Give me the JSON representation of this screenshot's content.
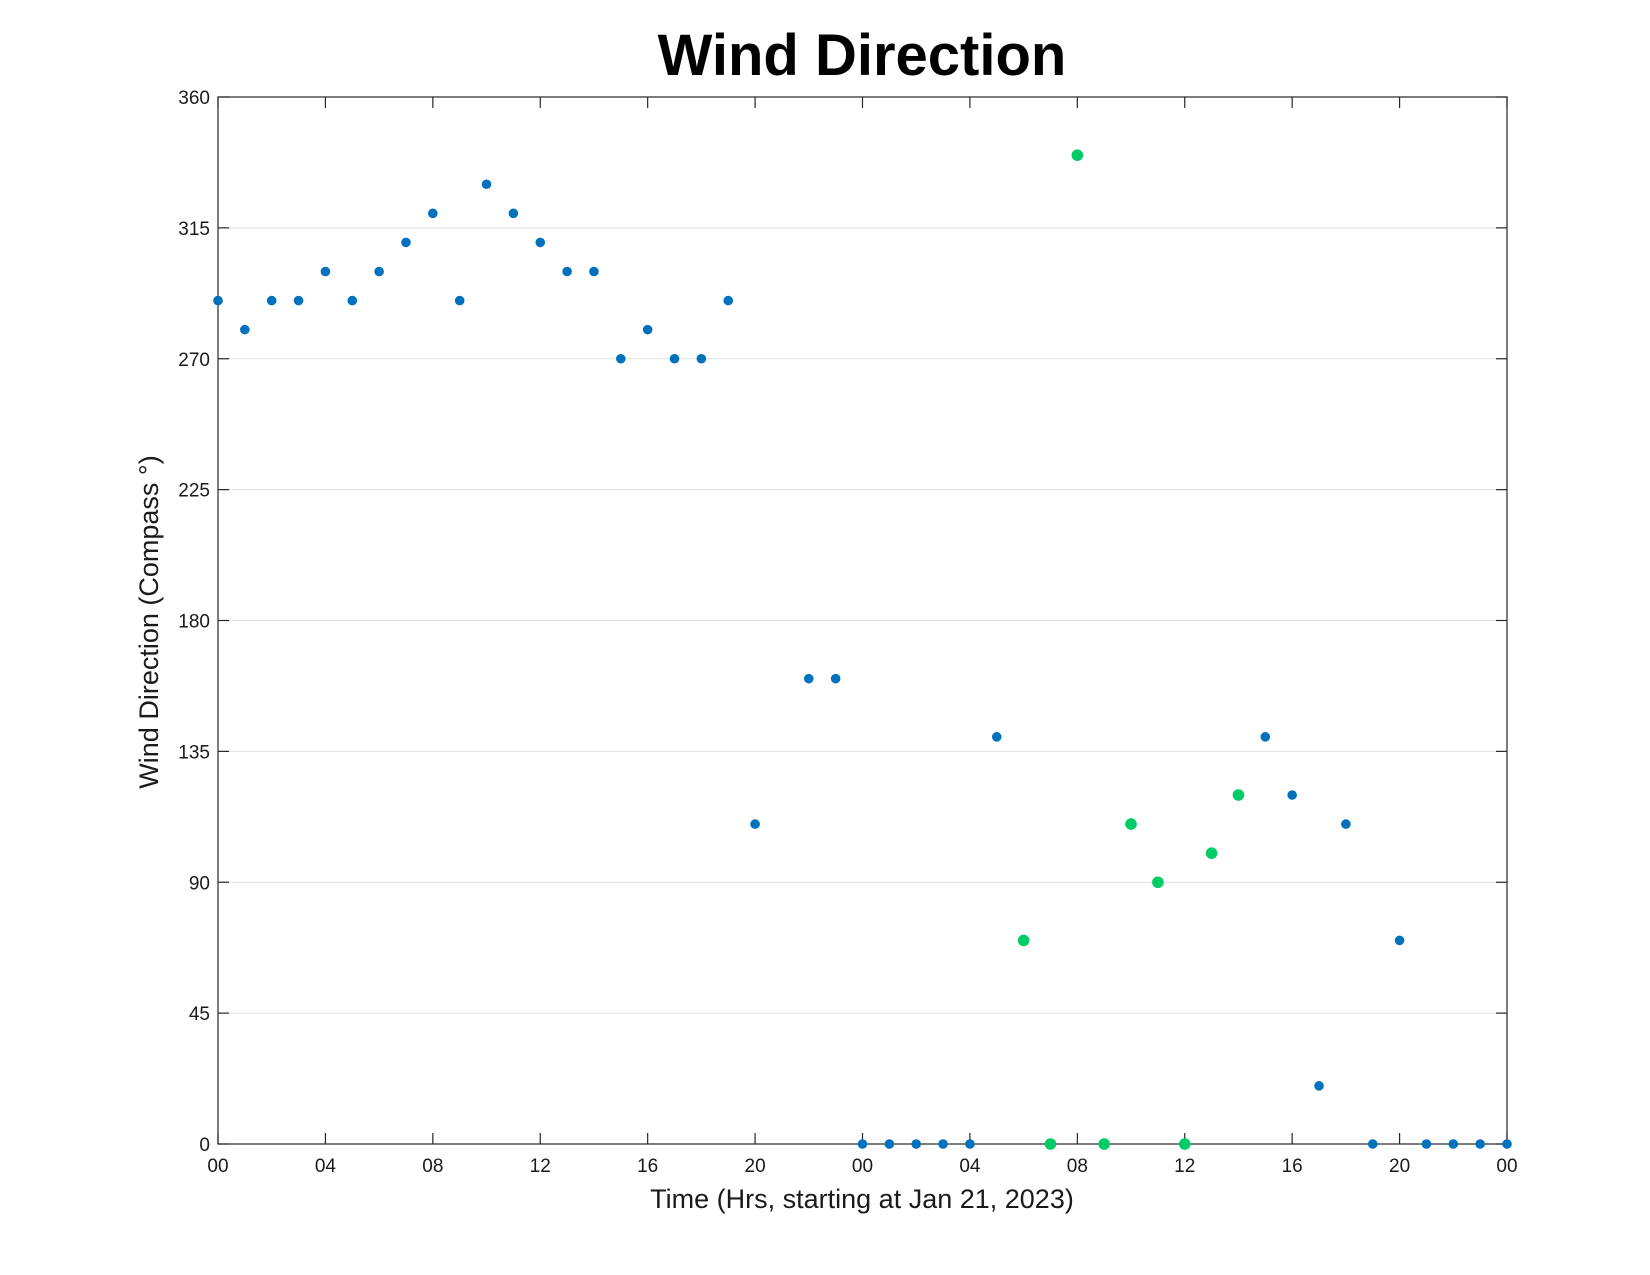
{
  "chart_data": {
    "type": "scatter",
    "title": "Wind Direction",
    "xlabel": "Time (Hrs, starting at Jan 21, 2023)",
    "ylabel": "Wind Direction (Compass °)",
    "xlim": [
      0,
      48
    ],
    "ylim": [
      0,
      360
    ],
    "x_tick_values": [
      0,
      4,
      8,
      12,
      16,
      20,
      24,
      28,
      32,
      36,
      40,
      44,
      48
    ],
    "x_tick_labels": [
      "00",
      "04",
      "08",
      "12",
      "16",
      "20",
      "00",
      "04",
      "08",
      "12",
      "16",
      "20",
      "00"
    ],
    "y_ticks": [
      0,
      45,
      90,
      135,
      180,
      225,
      270,
      315,
      360
    ],
    "grid": "horizontal",
    "legend": "none",
    "series": [
      {
        "color": "#0072BD",
        "points": [
          [
            0,
            290
          ],
          [
            1,
            280
          ],
          [
            2,
            290
          ],
          [
            3,
            290
          ],
          [
            4,
            300
          ],
          [
            5,
            290
          ],
          [
            6,
            300
          ],
          [
            7,
            310
          ],
          [
            8,
            320
          ],
          [
            9,
            290
          ],
          [
            10,
            330
          ],
          [
            11,
            320
          ],
          [
            12,
            310
          ],
          [
            13,
            300
          ],
          [
            14,
            300
          ],
          [
            15,
            270
          ],
          [
            16,
            280
          ],
          [
            17,
            270
          ],
          [
            18,
            270
          ],
          [
            19,
            290
          ],
          [
            20,
            110
          ],
          [
            22,
            160
          ],
          [
            23,
            160
          ],
          [
            24,
            0
          ],
          [
            25,
            0
          ],
          [
            26,
            0
          ],
          [
            27,
            0
          ],
          [
            28,
            0
          ],
          [
            29,
            140
          ],
          [
            39,
            140
          ],
          [
            40,
            120
          ],
          [
            41,
            20
          ],
          [
            42,
            110
          ],
          [
            43,
            0
          ],
          [
            44,
            70
          ],
          [
            45,
            0
          ],
          [
            46,
            0
          ],
          [
            47,
            0
          ],
          [
            48,
            0
          ]
        ]
      },
      {
        "color": "#00CC66",
        "points": [
          [
            30,
            70
          ],
          [
            31,
            0
          ],
          [
            32,
            340
          ],
          [
            33,
            0
          ],
          [
            34,
            110
          ],
          [
            35,
            90
          ],
          [
            36,
            0
          ],
          [
            37,
            100
          ],
          [
            38,
            120
          ]
        ]
      }
    ]
  }
}
